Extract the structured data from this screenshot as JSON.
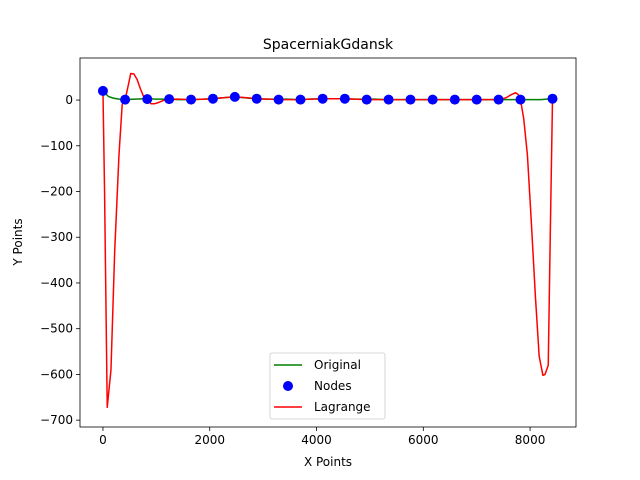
{
  "chart_data": {
    "type": "line",
    "title": "SpacerniakGdansk",
    "xlabel": "X Points",
    "ylabel": "Y Points",
    "xlim": [
      -430,
      8860
    ],
    "ylim": [
      -715,
      92
    ],
    "xticks": [
      0,
      2000,
      4000,
      6000,
      8000
    ],
    "yticks": [
      -700,
      -600,
      -500,
      -400,
      -300,
      -200,
      -100,
      0
    ],
    "legend_position": "lower center",
    "series": [
      {
        "name": "Original",
        "kind": "line",
        "color": "#008000",
        "x": [
          0,
          100,
          200,
          300,
          400,
          600,
          800,
          1000,
          1200,
          1400,
          1650,
          1900,
          2050,
          2250,
          2450,
          2650,
          2850,
          3050,
          3250,
          3450,
          3650,
          3850,
          4100,
          4300,
          4500,
          4700,
          4900,
          5100,
          5300,
          5500,
          5750,
          6000,
          6200,
          6400,
          6600,
          6800,
          7000,
          7200,
          7400,
          7600,
          7800,
          8000,
          8200,
          8400
        ],
        "y": [
          20,
          8,
          4,
          2,
          1,
          2,
          3,
          2,
          2,
          1,
          1,
          2,
          3,
          5,
          7,
          5,
          3,
          2,
          2,
          2,
          1,
          2,
          3,
          3,
          3,
          2,
          2,
          2,
          1,
          1,
          1,
          1,
          1,
          1,
          1,
          1,
          1,
          1,
          1,
          1,
          1,
          1,
          1,
          3
        ]
      },
      {
        "name": "Nodes",
        "kind": "scatter",
        "color": "#0000ff",
        "x": [
          0,
          415,
          830,
          1240,
          1650,
          2060,
          2470,
          2880,
          3290,
          3700,
          4115,
          4530,
          4940,
          5350,
          5760,
          6175,
          6590,
          7000,
          7410,
          7820,
          8420
        ],
        "y": [
          20,
          1,
          2,
          2,
          1,
          3,
          7,
          3,
          1,
          1,
          3,
          3,
          1,
          1,
          1,
          1,
          1,
          1,
          1,
          1,
          3
        ]
      },
      {
        "name": "Lagrange",
        "kind": "line",
        "color": "#ff0000",
        "x": [
          0,
          30,
          80,
          150,
          220,
          300,
          360,
          415,
          470,
          520,
          580,
          640,
          700,
          760,
          830,
          900,
          970,
          1050,
          1150,
          1240,
          1400,
          1650,
          1900,
          2060,
          2250,
          2470,
          2700,
          2880,
          3100,
          3290,
          3500,
          3700,
          3900,
          4115,
          4300,
          4530,
          4700,
          4940,
          5150,
          5350,
          5550,
          5760,
          6000,
          6175,
          6400,
          6590,
          6800,
          7000,
          7200,
          7410,
          7550,
          7650,
          7730,
          7780,
          7820,
          7880,
          7950,
          8020,
          8100,
          8170,
          8240,
          8280,
          8340,
          8380,
          8420
        ],
        "y": [
          20,
          -200,
          -672,
          -590,
          -330,
          -120,
          -10,
          1,
          30,
          58,
          57,
          45,
          25,
          8,
          2,
          -8,
          -8,
          -5,
          0,
          2,
          2,
          1,
          2,
          3,
          5,
          7,
          5,
          3,
          2,
          1,
          1,
          1,
          2,
          3,
          3,
          3,
          2,
          1,
          1,
          1,
          1,
          1,
          1,
          1,
          1,
          1,
          1,
          1,
          1,
          1,
          5,
          12,
          16,
          12,
          1,
          -40,
          -120,
          -260,
          -430,
          -560,
          -602,
          -600,
          -580,
          -280,
          3
        ]
      }
    ]
  }
}
